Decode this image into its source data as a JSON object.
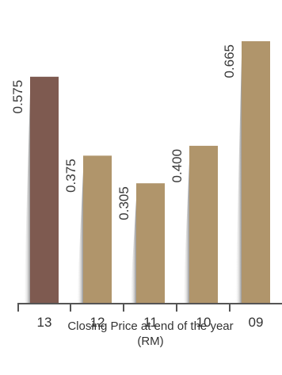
{
  "chart_data": {
    "type": "bar",
    "categories": [
      "13",
      "12",
      "11",
      "10",
      "09"
    ],
    "values": [
      0.575,
      0.375,
      0.305,
      0.4,
      0.665
    ],
    "value_labels": [
      "0.575",
      "0.375",
      "0.305",
      "0.400",
      "0.665"
    ],
    "title_lines": [
      "Closing Price at end of the year",
      "(RM)"
    ],
    "ylim": [
      0,
      0.665
    ],
    "grid": false,
    "legend": "none",
    "colors": {
      "highlight": "#7e5a50",
      "bar": "#b0956b",
      "axis": "#555555",
      "shadow_dark": "#8a8a8a",
      "shadow_light": "#ffffff"
    }
  }
}
